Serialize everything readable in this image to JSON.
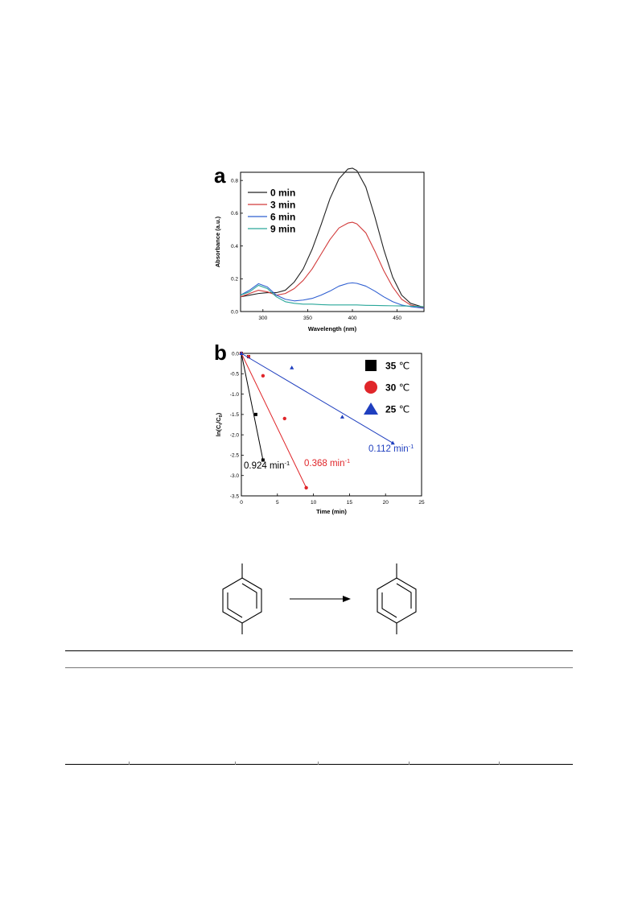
{
  "figure": {
    "panel_a_label": "a",
    "panel_b_label": "b"
  },
  "chart_data": [
    {
      "type": "line",
      "panel": "a",
      "xlabel": "Wavelength (nm)",
      "ylabel": "Absorbance (a.u.)",
      "xlim": [
        275,
        480
      ],
      "ylim": [
        0,
        0.85
      ],
      "x_ticks": [
        300,
        350,
        400,
        450
      ],
      "y_ticks": [
        0.0,
        0.2,
        0.4,
        0.6,
        0.8
      ],
      "legend_position": "top-left",
      "grid": false,
      "x": [
        275,
        285,
        295,
        305,
        315,
        325,
        335,
        345,
        355,
        365,
        375,
        385,
        395,
        400,
        405,
        415,
        425,
        435,
        445,
        455,
        465,
        480
      ],
      "series": [
        {
          "name": "0 min",
          "color": "#222222",
          "values": [
            0.09,
            0.1,
            0.11,
            0.115,
            0.115,
            0.13,
            0.18,
            0.26,
            0.38,
            0.53,
            0.69,
            0.81,
            0.87,
            0.875,
            0.86,
            0.76,
            0.58,
            0.38,
            0.21,
            0.1,
            0.05,
            0.025
          ]
        },
        {
          "name": "3 min",
          "color": "#d23b3b",
          "values": [
            0.09,
            0.11,
            0.13,
            0.12,
            0.1,
            0.11,
            0.14,
            0.19,
            0.26,
            0.35,
            0.44,
            0.51,
            0.54,
            0.545,
            0.535,
            0.48,
            0.37,
            0.25,
            0.15,
            0.075,
            0.04,
            0.022
          ]
        },
        {
          "name": "6 min",
          "color": "#2f5fd1",
          "values": [
            0.1,
            0.13,
            0.17,
            0.15,
            0.1,
            0.075,
            0.065,
            0.07,
            0.08,
            0.1,
            0.125,
            0.155,
            0.172,
            0.175,
            0.172,
            0.155,
            0.125,
            0.09,
            0.06,
            0.04,
            0.03,
            0.02
          ]
        },
        {
          "name": "9 min",
          "color": "#2aa79a",
          "values": [
            0.1,
            0.12,
            0.16,
            0.14,
            0.09,
            0.06,
            0.05,
            0.045,
            0.045,
            0.042,
            0.04,
            0.04,
            0.04,
            0.04,
            0.04,
            0.038,
            0.037,
            0.036,
            0.035,
            0.034,
            0.033,
            0.03
          ]
        }
      ]
    },
    {
      "type": "scatter",
      "panel": "b",
      "xlabel": "Time (min)",
      "ylabel": "ln(C",
      "ylabel_sub1": "t",
      "ylabel_mid": "/C",
      "ylabel_sub2": "0",
      "ylabel_end": ")",
      "xlim": [
        0,
        25
      ],
      "ylim": [
        -3.5,
        0
      ],
      "x_ticks": [
        0,
        5,
        10,
        15,
        20,
        25
      ],
      "y_ticks": [
        0.0,
        -0.5,
        -1.0,
        -1.5,
        -2.0,
        -2.5,
        -3.0,
        -3.5
      ],
      "legend_position": "top-right",
      "grid": false,
      "series": [
        {
          "name": "35 ℃",
          "color": "#000000",
          "marker": "square",
          "x": [
            0,
            1,
            2,
            3
          ],
          "y": [
            0,
            -0.08,
            -1.5,
            -2.62
          ],
          "fit": {
            "x0": 0,
            "y0": 0,
            "x1": 3,
            "y1": -2.62
          },
          "rate_label": "0.924 min",
          "rate_sup": "-1"
        },
        {
          "name": "30 ℃",
          "color": "#e0262a",
          "marker": "circle",
          "x": [
            0,
            1,
            3,
            6,
            9
          ],
          "y": [
            0,
            -0.08,
            -0.55,
            -1.6,
            -3.3
          ],
          "fit": {
            "x0": 0,
            "y0": 0,
            "x1": 9,
            "y1": -3.3
          },
          "rate_label": "0.368 min",
          "rate_sup": "-1"
        },
        {
          "name": "25 ℃",
          "color": "#1f3fbf",
          "marker": "triangle",
          "x": [
            0,
            7,
            14,
            21
          ],
          "y": [
            0,
            -0.35,
            -1.56,
            -2.2
          ],
          "fit": {
            "x0": 0,
            "y0": 0,
            "x1": 21,
            "y1": -2.2
          },
          "rate_label": "0.112 min",
          "rate_sup": "-1"
        }
      ]
    }
  ]
}
